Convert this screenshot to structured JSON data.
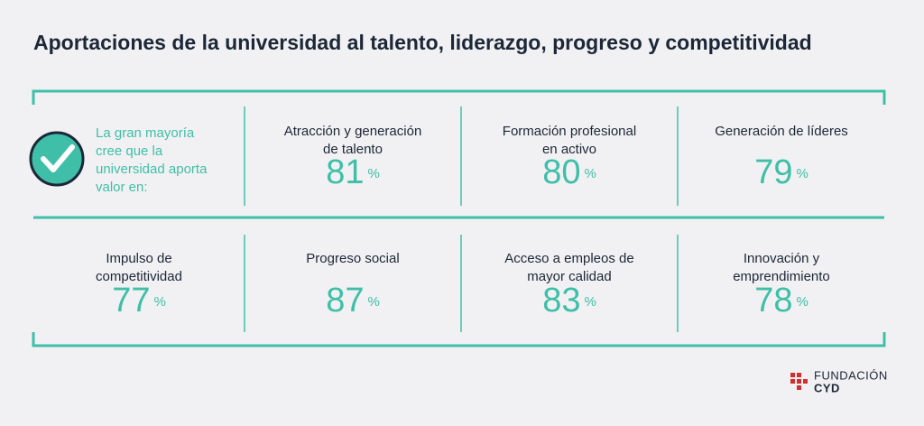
{
  "title": "Aportaciones de la universidad al talento, liderazgo, progreso y competitividad",
  "intro": [
    "La gran mayoría",
    "cree que la",
    "universidad aporta",
    "valor en:"
  ],
  "items": [
    {
      "label": [
        "Atracción y generación",
        "de talento"
      ],
      "value": 81,
      "unit": "%"
    },
    {
      "label": [
        "Formación profesional",
        "en activo"
      ],
      "value": 80,
      "unit": "%"
    },
    {
      "label": [
        "Generación de líderes"
      ],
      "value": 79,
      "unit": "%"
    },
    {
      "label": [
        "Impulso de",
        "competitividad"
      ],
      "value": 77,
      "unit": "%"
    },
    {
      "label": [
        "Progreso social"
      ],
      "value": 87,
      "unit": "%"
    },
    {
      "label": [
        "Acceso a empleos de",
        "mayor calidad"
      ],
      "value": 83,
      "unit": "%"
    },
    {
      "label": [
        "Innovación y",
        "emprendimiento"
      ],
      "value": 78,
      "unit": "%"
    }
  ],
  "logo": {
    "line1": "FUNDACIÓN",
    "line2": "CYD"
  }
}
